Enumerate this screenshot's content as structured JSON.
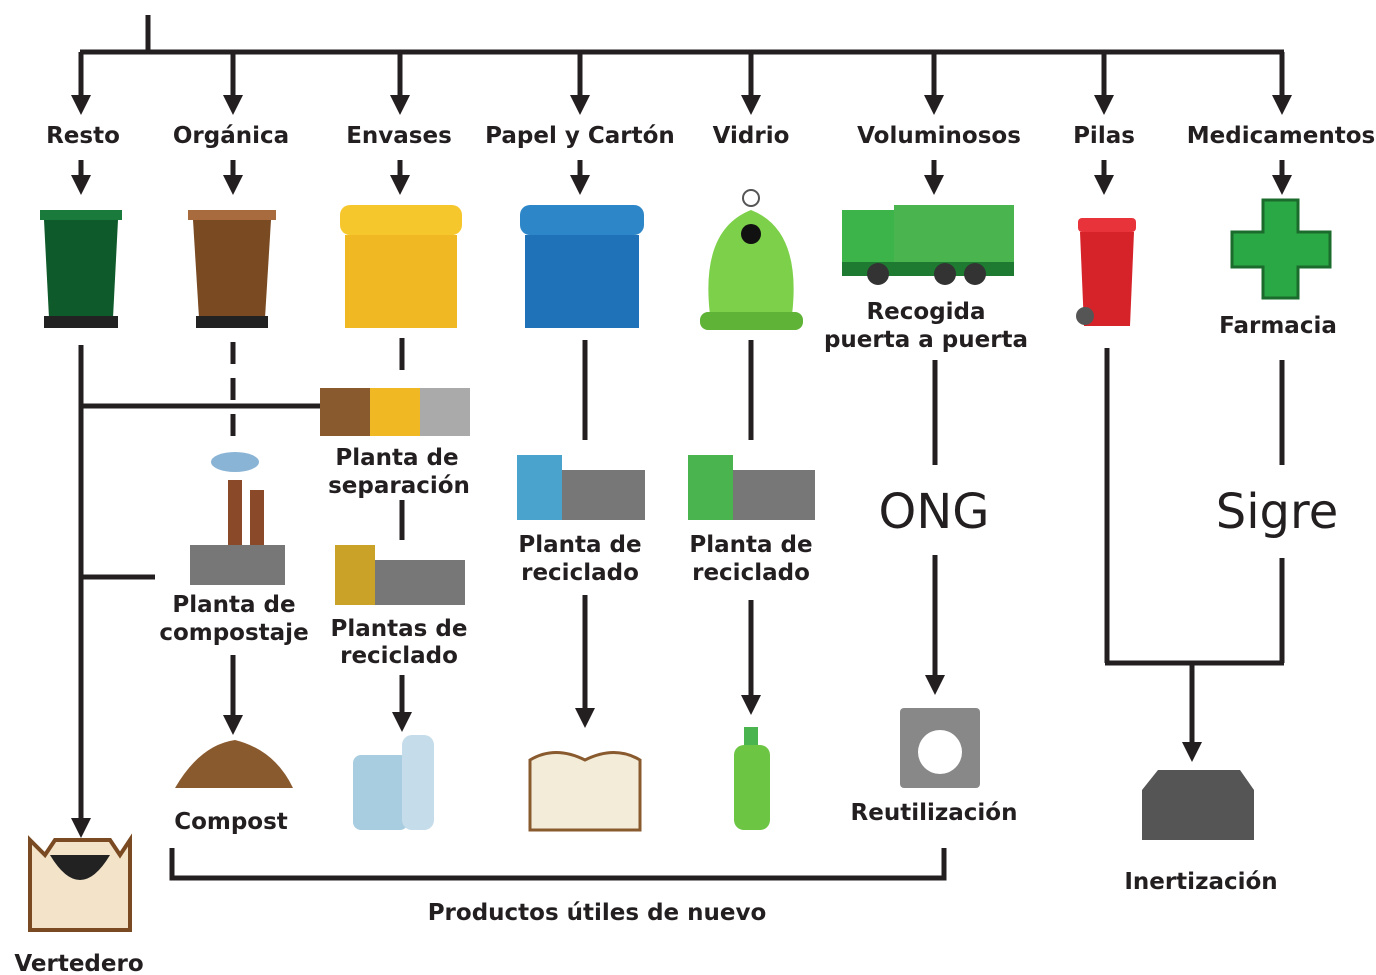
{
  "streams": [
    "Resto",
    "Orgánica",
    "Envases",
    "Papel y Cartón",
    "Vidrio",
    "Voluminosos",
    "Pilas",
    "Medicamentos"
  ],
  "stations": {
    "separacion": [
      "Planta de",
      "separación"
    ],
    "compostaje": [
      "Planta de",
      "compostaje"
    ],
    "plantas_reciclado": [
      "Plantas de",
      "reciclado"
    ],
    "papel_reciclado": [
      "Planta de",
      "reciclado"
    ],
    "vidrio_reciclado": [
      "Planta de",
      "reciclado"
    ],
    "recogida": [
      "Recogida",
      "puerta a puerta"
    ],
    "farmacia": "Farmacia",
    "ong": "ONG",
    "sigre": "Sigre"
  },
  "outputs": {
    "compost": "Compost",
    "reutilizacion": "Reutilización",
    "vertedero": "Vertedero",
    "inertizacion": "Inertización",
    "productos": "Productos útiles de nuevo"
  }
}
